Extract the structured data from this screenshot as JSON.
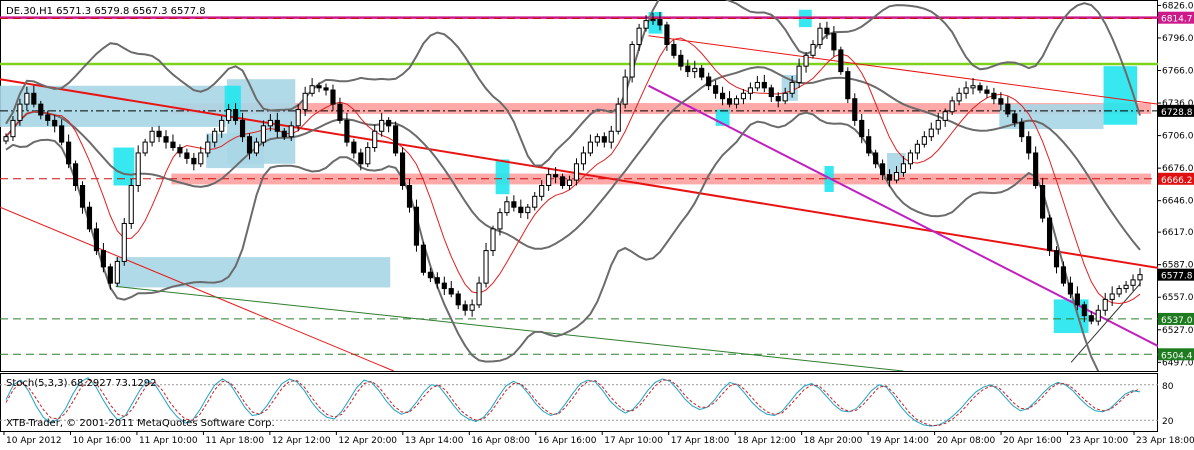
{
  "header": {
    "title": "DE.30,H1  6571.3 6579.8 6567.3 6577.8"
  },
  "footer": {
    "copyright": "XTB-Trader, © 2001-2011 MetaQuotes Software Corp."
  },
  "colors": {
    "candle": "#000000",
    "up_body": "#ffffff",
    "bollinger": "#6b6b6b",
    "ma": "#e02020",
    "trend_red": "#e81414",
    "trend_magenta": "#c020c0",
    "trend_green": "#2e7d2e",
    "resistance_band": "#ff9a9a",
    "zone_light": "#a9d6e5",
    "zone_cyan": "#22e6ee",
    "level_magenta": "#cc1a8a",
    "level_green": "#2e7d2e",
    "level_lime": "#7fd21c",
    "stoch_main": "#1aa3c8",
    "stoch_signal": "#d02020",
    "dashed_red": "#c81010"
  },
  "chart_data": [
    {
      "type": "candlestick",
      "title": "DE.30,H1",
      "ohlc_header": "6571.3 6579.8 6567.3 6577.8",
      "y_ticks": [
        "6826.0",
        "6796.0",
        "6766.0",
        "6736.0",
        "6706.0",
        "6676.0",
        "6646.0",
        "6617.0",
        "6587.0",
        "6557.0",
        "6527.0",
        "6497.0"
      ],
      "ylim": [
        6489,
        6831
      ],
      "x_ticks": [
        "10 Apr 2012",
        "10 Apr 16:00",
        "11 Apr 10:00",
        "11 Apr 18:00",
        "12 Apr 12:00",
        "12 Apr 20:00",
        "13 Apr 14:00",
        "16 Apr 08:00",
        "16 Apr 16:00",
        "17 Apr 10:00",
        "17 Apr 18:00",
        "18 Apr 12:00",
        "18 Apr 20:00",
        "19 Apr 14:00",
        "20 Apr 08:00",
        "20 Apr 16:00",
        "23 Apr 10:00",
        "23 Apr 18:00"
      ],
      "price_labels": [
        {
          "value": 6814.7,
          "text": "6814.7",
          "color": "#cc1a8a"
        },
        {
          "value": 6728.8,
          "text": "6728.8",
          "color": "#000000"
        },
        {
          "value": 6666.2,
          "text": "6666.2",
          "color": "#e01010"
        },
        {
          "value": 6577.8,
          "text": "6577.8",
          "color": "#000000"
        },
        {
          "value": 6537.0,
          "text": "6537.0",
          "color": "#1e7a1e"
        },
        {
          "value": 6504.4,
          "text": "6504.4",
          "color": "#1e7a1e"
        }
      ],
      "horizontal_levels": [
        {
          "value": 6814.7,
          "style": "solid",
          "color": "#cc1a8a"
        },
        {
          "value": 6814.0,
          "style": "dashed",
          "color": "#c81010"
        },
        {
          "value": 6772.0,
          "style": "solid",
          "color": "#7fd21c"
        },
        {
          "value": 6728.8,
          "style": "dashdot",
          "color": "#000000"
        },
        {
          "value": 6666.2,
          "style": "dashed",
          "color": "#c81010"
        },
        {
          "value": 6537.0,
          "style": "dashed",
          "color": "#2e7d2e"
        },
        {
          "value": 6504.4,
          "style": "dashed",
          "color": "#2e7d2e"
        }
      ],
      "bands": [
        {
          "y_low": 6726.0,
          "y_high": 6736.0
        },
        {
          "y_low": 6661.0,
          "y_high": 6671.0
        }
      ],
      "closes": [
        6705,
        6720,
        6735,
        6745,
        6735,
        6725,
        6720,
        6715,
        6700,
        6680,
        6660,
        6640,
        6620,
        6600,
        6585,
        6570,
        6590,
        6625,
        6660,
        6690,
        6700,
        6710,
        6705,
        6700,
        6695,
        6690,
        6685,
        6680,
        6690,
        6700,
        6710,
        6720,
        6730,
        6720,
        6705,
        6690,
        6700,
        6715,
        6720,
        6710,
        6705,
        6715,
        6730,
        6745,
        6752,
        6750,
        6748,
        6735,
        6720,
        6700,
        6690,
        6680,
        6695,
        6710,
        6720,
        6715,
        6690,
        6660,
        6640,
        6605,
        6580,
        6575,
        6570,
        6565,
        6560,
        6550,
        6545,
        6550,
        6570,
        6600,
        6620,
        6635,
        6645,
        6640,
        6635,
        6640,
        6650,
        6660,
        6670,
        6668,
        6660,
        6665,
        6680,
        6690,
        6700,
        6705,
        6700,
        6710,
        6735,
        6760,
        6790,
        6805,
        6812,
        6813,
        6808,
        6790,
        6780,
        6770,
        6765,
        6768,
        6760,
        6752,
        6745,
        6740,
        6735,
        6740,
        6745,
        6750,
        6755,
        6750,
        6742,
        6738,
        6745,
        6755,
        6770,
        6780,
        6790,
        6805,
        6800,
        6785,
        6765,
        6740,
        6720,
        6705,
        6690,
        6680,
        6670,
        6665,
        6672,
        6680,
        6690,
        6698,
        6705,
        6712,
        6720,
        6728,
        6738,
        6745,
        6750,
        6752,
        6748,
        6745,
        6740,
        6735,
        6726,
        6718,
        6705,
        6690,
        6660,
        6630,
        6600,
        6585,
        6570,
        6560,
        6550,
        6540,
        6535,
        6545,
        6555,
        6560,
        6565,
        6568,
        6573,
        6577.8
      ]
    },
    {
      "type": "line",
      "title": "Stoch(5,3,3) 68.2927 73.1292",
      "y_ticks": [
        "80",
        "20"
      ],
      "ylim": [
        0,
        100
      ],
      "series": [
        {
          "name": "Stoch main",
          "values": [
            55,
            80,
            88,
            70,
            45,
            25,
            15,
            22,
            40,
            65,
            85,
            92,
            78,
            55,
            35,
            20,
            28,
            50,
            72,
            88,
            80,
            60,
            40,
            25,
            15,
            20,
            38,
            60,
            80,
            90,
            82,
            62,
            42,
            28,
            30,
            45,
            65,
            82,
            90,
            85,
            70,
            50,
            35,
            25,
            22,
            35,
            55,
            75,
            88,
            84,
            70,
            52,
            38,
            30,
            35,
            50,
            68,
            80,
            78,
            62,
            45,
            30,
            22,
            18,
            25,
            40,
            60,
            78,
            86,
            80,
            65,
            48,
            35,
            28,
            32,
            48,
            66,
            82,
            88,
            85,
            70,
            52,
            40,
            32,
            38,
            52,
            70,
            84,
            90,
            86,
            72,
            56,
            44,
            38,
            42,
            55,
            72,
            84,
            80,
            66,
            50,
            38,
            30,
            28,
            35,
            50,
            66,
            78,
            82,
            74,
            60,
            46,
            36,
            34,
            40,
            54,
            70,
            80,
            76,
            60,
            42,
            28,
            18,
            12,
            10,
            12,
            18,
            28,
            40,
            55,
            68,
            76,
            80,
            72,
            58,
            44,
            36,
            40,
            52,
            66,
            78,
            84,
            80,
            70,
            56,
            44,
            36,
            34,
            40,
            52,
            64,
            70,
            68
          ]
        },
        {
          "name": "Stoch signal",
          "values": [
            50,
            72,
            84,
            76,
            58,
            38,
            24,
            22,
            32,
            52,
            74,
            88,
            84,
            66,
            46,
            30,
            26,
            40,
            62,
            82,
            84,
            70,
            50,
            34,
            22,
            20,
            30,
            50,
            72,
            86,
            84,
            70,
            50,
            34,
            30,
            38,
            56,
            74,
            86,
            87,
            76,
            58,
            42,
            30,
            25,
            30,
            46,
            66,
            82,
            86,
            76,
            60,
            44,
            34,
            33,
            44,
            60,
            74,
            80,
            70,
            52,
            36,
            26,
            20,
            22,
            34,
            52,
            70,
            82,
            82,
            70,
            54,
            40,
            31,
            30,
            42,
            58,
            76,
            86,
            87,
            76,
            60,
            46,
            36,
            36,
            46,
            62,
            78,
            88,
            88,
            78,
            62,
            50,
            42,
            42,
            50,
            64,
            78,
            82,
            72,
            58,
            44,
            34,
            30,
            32,
            44,
            58,
            72,
            80,
            78,
            66,
            52,
            40,
            35,
            37,
            48,
            62,
            76,
            78,
            66,
            50,
            34,
            22,
            15,
            11,
            11,
            15,
            23,
            34,
            48,
            62,
            72,
            78,
            76,
            64,
            50,
            40,
            39,
            48,
            60,
            74,
            82,
            82,
            74,
            62,
            50,
            40,
            36,
            38,
            48,
            60,
            68,
            73
          ]
        }
      ]
    }
  ]
}
